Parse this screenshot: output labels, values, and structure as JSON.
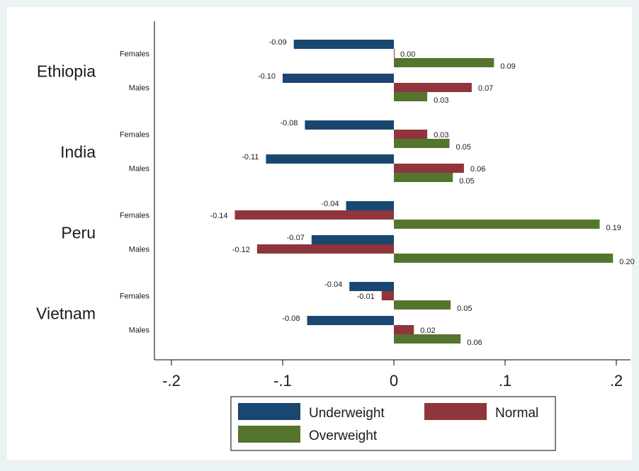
{
  "chart_data": {
    "type": "bar",
    "orientation": "horizontal",
    "title": "",
    "xlabel": "",
    "ylabel": "",
    "xlim": [
      -0.2,
      0.2
    ],
    "x_ticks": [
      {
        "value": -0.2,
        "label": "-.2"
      },
      {
        "value": -0.1,
        "label": "-.1"
      },
      {
        "value": 0,
        "label": "0"
      },
      {
        "value": 0.1,
        "label": ".1"
      },
      {
        "value": 0.2,
        "label": ".2"
      }
    ],
    "grid": false,
    "legend_position": "bottom",
    "series": [
      {
        "name": "Underweight",
        "color": "#1a476f"
      },
      {
        "name": "Normal",
        "color": "#90353b"
      },
      {
        "name": "Overweight",
        "color": "#55752f"
      }
    ],
    "groups": [
      {
        "country": "Ethiopia",
        "subgroups": [
          {
            "label": "Females",
            "values": [
              -0.09,
              0.0,
              0.09
            ],
            "value_labels": [
              "-0.09",
              "0.00",
              "0.09"
            ]
          },
          {
            "label": "Males",
            "values": [
              -0.1,
              0.07,
              0.03
            ],
            "value_labels": [
              "-0.10",
              "0.07",
              "0.03"
            ]
          }
        ]
      },
      {
        "country": "India",
        "subgroups": [
          {
            "label": "Females",
            "values": [
              -0.08,
              0.03,
              0.05
            ],
            "value_labels": [
              "-0.08",
              "0.03",
              "0.05"
            ]
          },
          {
            "label": "Males",
            "values": [
              -0.115,
              0.063,
              0.053
            ],
            "value_labels": [
              "-0.11",
              "0.06",
              "0.05"
            ]
          }
        ]
      },
      {
        "country": "Peru",
        "subgroups": [
          {
            "label": "Females",
            "values": [
              -0.043,
              -0.143,
              0.185
            ],
            "value_labels": [
              "-0.04",
              "-0.14",
              "0.19"
            ]
          },
          {
            "label": "Males",
            "values": [
              -0.074,
              -0.123,
              0.197
            ],
            "value_labels": [
              "-0.07",
              "-0.12",
              "0.20"
            ]
          }
        ]
      },
      {
        "country": "Vietnam",
        "subgroups": [
          {
            "label": "Females",
            "values": [
              -0.04,
              -0.011,
              0.051
            ],
            "value_labels": [
              "-0.04",
              "-0.01",
              "0.05"
            ]
          },
          {
            "label": "Males",
            "values": [
              -0.078,
              0.018,
              0.06
            ],
            "value_labels": [
              "-0.08",
              "0.02",
              "0.06"
            ]
          }
        ]
      }
    ]
  }
}
